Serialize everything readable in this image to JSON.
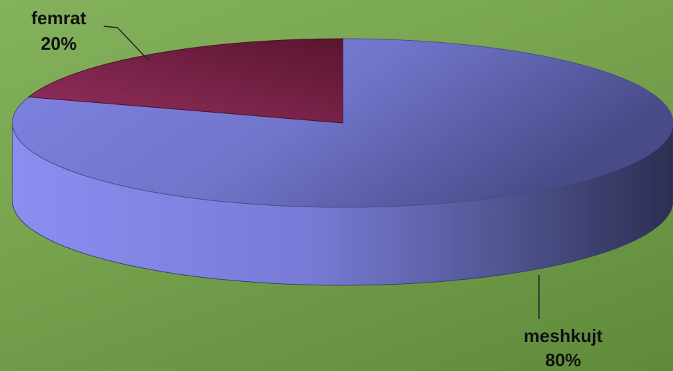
{
  "chart_data": {
    "type": "pie",
    "style": "3d",
    "categories": [
      "meshkujt",
      "femrat"
    ],
    "values": [
      80,
      20
    ],
    "value_labels": [
      "80%",
      "20%"
    ],
    "colors": [
      "#8a8ee6",
      "#8b2a55"
    ],
    "title": "",
    "legend": "none"
  }
}
